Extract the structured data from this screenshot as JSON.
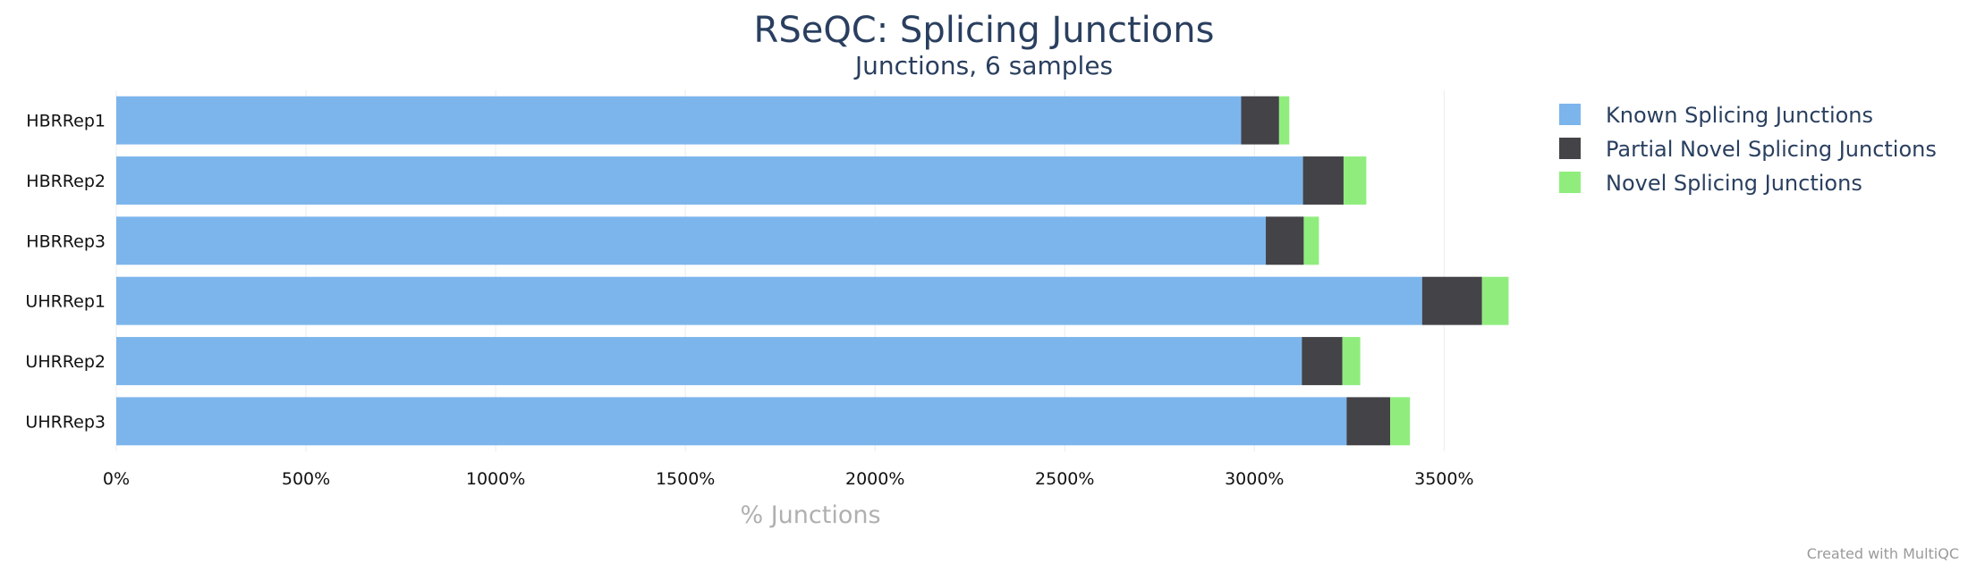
{
  "chart_data": {
    "type": "bar",
    "orientation": "horizontal",
    "stacked": true,
    "title": "RSeQC: Splicing Junctions",
    "subtitle": "Junctions, 6 samples",
    "xlabel": "% Junctions",
    "ylabel": "",
    "xlim": [
      0,
      3700
    ],
    "x_ticks": [
      0,
      500,
      1000,
      1500,
      2000,
      2500,
      3000,
      3500
    ],
    "x_tick_suffix": "%",
    "grid": true,
    "legend_position": "top-right",
    "categories": [
      "HBRRep1",
      "HBRRep2",
      "HBRRep3",
      "UHRRep1",
      "UHRRep2",
      "UHRRep3"
    ],
    "series": [
      {
        "name": "Known Splicing Junctions",
        "color": "#7cb5ec",
        "values": [
          2965,
          3128,
          3030,
          3442,
          3125,
          3243
        ]
      },
      {
        "name": "Partial Novel Splicing Junctions",
        "color": "#434348",
        "values": [
          100,
          107,
          100,
          158,
          107,
          115
        ]
      },
      {
        "name": "Novel Splicing Junctions",
        "color": "#90ed7d",
        "values": [
          27,
          60,
          40,
          70,
          47,
          52
        ]
      }
    ]
  },
  "credit": "Created with MultiQC"
}
